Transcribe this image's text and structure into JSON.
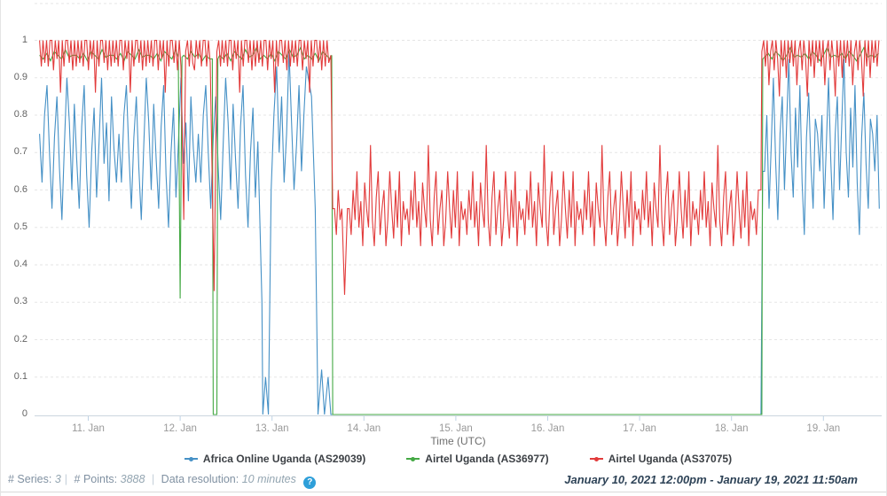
{
  "page": {
    "footer": {
      "series_label": "# Series:",
      "series_value": "3",
      "points_label": "# Points:",
      "points_value": "3888",
      "resolution_label": "Data resolution:",
      "resolution_value": "10 minutes",
      "separator": "|",
      "help_icon_glyph": "?",
      "date_range": "January 10, 2021 12:00pm - January 19, 2021 11:50am"
    },
    "colors": {
      "help_icon_bg": "#2e9fd9",
      "footer_label": "#8091a2",
      "date_text": "#2e4357",
      "gridline": "#e5e5e5",
      "axis_line": "#ccd6de",
      "tick_mark": "#bfd3e5"
    }
  },
  "chart_data": {
    "type": "line",
    "title": "",
    "xlabel": "Time (UTC)",
    "ylabel": "",
    "ylim": [
      0,
      1
    ],
    "x_range_label": [
      "January 10, 2021 12:00pm",
      "January 19, 2021 11:50am"
    ],
    "grid": "horizontal-dashed",
    "legend_position": "bottom",
    "y_ticks": [
      {
        "v": 1.0,
        "label": "1"
      },
      {
        "v": 0.9,
        "label": "0.9"
      },
      {
        "v": 0.8,
        "label": "0.8"
      },
      {
        "v": 0.7,
        "label": "0.7"
      },
      {
        "v": 0.6,
        "label": "0.6"
      },
      {
        "v": 0.5,
        "label": "0.5"
      },
      {
        "v": 0.4,
        "label": "0.4"
      },
      {
        "v": 0.3,
        "label": "0.3"
      },
      {
        "v": 0.2,
        "label": "0.2"
      },
      {
        "v": 0.1,
        "label": "0.1"
      },
      {
        "v": 0.0,
        "label": "0"
      }
    ],
    "x_ticks": [
      {
        "day": 11,
        "label": "11. Jan"
      },
      {
        "day": 12,
        "label": "12. Jan"
      },
      {
        "day": 13,
        "label": "13. Jan"
      },
      {
        "day": 14,
        "label": "14. Jan"
      },
      {
        "day": 15,
        "label": "15. Jan"
      },
      {
        "day": 16,
        "label": "16. Jan"
      },
      {
        "day": 17,
        "label": "17. Jan"
      },
      {
        "day": 18,
        "label": "18. Jan"
      },
      {
        "day": 19,
        "label": "19. Jan"
      }
    ],
    "series": [
      {
        "name": "Africa Online Uganda (AS29039)",
        "color": "#4691c6",
        "segments": [
          {
            "mode": "noise",
            "x0": 10.47,
            "x1": 12.87,
            "step": 0.027,
            "values": [
              0.75,
              0.62,
              0.8,
              0.88,
              0.7,
              0.55,
              0.74,
              0.85,
              0.66,
              0.52,
              0.72,
              0.9,
              0.78,
              0.6,
              0.83,
              0.68,
              0.55,
              0.77,
              0.88,
              0.64,
              0.5,
              0.7,
              0.82,
              0.58,
              0.73,
              0.9,
              0.67,
              0.78,
              0.57,
              0.85,
              0.71,
              0.62
            ]
          },
          {
            "mode": "points",
            "pts": [
              [
                12.89,
                0.3
              ],
              [
                12.9,
                0
              ],
              [
                12.93,
                0.1
              ],
              [
                12.96,
                0
              ],
              [
                12.99,
                0.6
              ],
              [
                13.02,
                0.8
              ]
            ]
          },
          {
            "mode": "noise",
            "x0": 13.05,
            "x1": 13.4,
            "step": 0.027,
            "values": [
              0.93,
              0.7,
              0.85,
              0.62,
              0.75,
              0.97,
              0.78,
              0.6,
              0.72,
              0.88,
              0.65,
              0.8
            ]
          },
          {
            "mode": "points",
            "pts": [
              [
                13.43,
                0.85
              ],
              [
                13.47,
                0.55
              ],
              [
                13.5,
                0
              ],
              [
                13.54,
                0.12
              ],
              [
                13.57,
                0
              ],
              [
                13.61,
                0.1
              ],
              [
                13.64,
                0
              ],
              [
                18.32,
                0
              ],
              [
                18.34,
                0.65
              ]
            ]
          },
          {
            "mode": "noise",
            "x0": 18.36,
            "x1": 19.62,
            "step": 0.024,
            "values": [
              0.65,
              0.8,
              0.55,
              0.72,
              0.9,
              0.68,
              0.52,
              0.75,
              0.85,
              0.6,
              0.78,
              0.95,
              0.7,
              0.58,
              0.82,
              0.66,
              0.88,
              0.62,
              0.48,
              0.74,
              0.86,
              0.67,
              0.55,
              0.79,
              0.75
            ]
          }
        ]
      },
      {
        "name": "Airtel Uganda (AS36977)",
        "color": "#44a944",
        "segments": [
          {
            "mode": "noise",
            "x0": 10.47,
            "x1": 11.96,
            "step": 0.04,
            "values": [
              0.96,
              0.95,
              0.965,
              0.945,
              0.97,
              0.96,
              0.95,
              0.975,
              0.955,
              0.96
            ]
          },
          {
            "mode": "points",
            "pts": [
              [
                11.98,
                0.955
              ],
              [
                12.0,
                0.31
              ],
              [
                12.02,
                0.955
              ]
            ]
          },
          {
            "mode": "noise",
            "x0": 12.04,
            "x1": 12.33,
            "step": 0.04,
            "values": [
              0.96,
              0.95,
              0.97,
              0.955,
              0.965,
              0.945
            ]
          },
          {
            "mode": "points",
            "pts": [
              [
                12.35,
                0.95
              ],
              [
                12.36,
                0
              ],
              [
                12.4,
                0
              ],
              [
                12.41,
                0.95
              ]
            ]
          },
          {
            "mode": "noise",
            "x0": 12.43,
            "x1": 13.63,
            "step": 0.04,
            "values": [
              0.96,
              0.95,
              0.965,
              0.945,
              0.97,
              0.96,
              0.95,
              0.975,
              0.955,
              0.96,
              0.98,
              0.95
            ]
          },
          {
            "mode": "points",
            "pts": [
              [
                13.65,
                0.96
              ],
              [
                13.66,
                0
              ],
              [
                18.33,
                0
              ],
              [
                18.34,
                0.95
              ]
            ]
          },
          {
            "mode": "noise",
            "x0": 18.36,
            "x1": 19.62,
            "step": 0.04,
            "values": [
              0.955,
              0.965,
              0.95,
              0.97,
              0.96,
              0.945,
              0.96,
              0.98,
              0.955,
              0.96
            ]
          }
        ]
      },
      {
        "name": "Airtel Uganda (AS37075)",
        "color": "#e23b3b",
        "segments": [
          {
            "mode": "noise",
            "x0": 10.47,
            "x1": 12.02,
            "step": 0.019,
            "values": [
              1,
              0.93,
              1,
              0.94,
              1,
              0.93,
              1,
              1,
              0.92,
              1,
              0.95,
              1,
              0.86,
              1,
              0.93,
              1,
              1,
              0.94,
              1,
              0.92
            ]
          },
          {
            "mode": "points",
            "pts": [
              [
                12.04,
                0.52
              ],
              [
                12.06,
                0.97
              ]
            ]
          },
          {
            "mode": "noise",
            "x0": 12.08,
            "x1": 12.34,
            "step": 0.019,
            "values": [
              1,
              0.93,
              1,
              0.94,
              0.92,
              1,
              0.95,
              1,
              0.93,
              1
            ]
          },
          {
            "mode": "points",
            "pts": [
              [
                12.37,
                0.33
              ],
              [
                12.4,
                0.97
              ]
            ]
          },
          {
            "mode": "noise",
            "x0": 12.42,
            "x1": 13.62,
            "step": 0.019,
            "values": [
              1,
              0.93,
              1,
              0.94,
              1,
              0.93,
              1,
              1,
              0.92,
              1,
              0.95,
              1,
              0.86,
              1,
              0.93,
              1,
              1,
              0.94,
              1,
              0.92
            ]
          },
          {
            "mode": "points",
            "pts": [
              [
                13.64,
                0.96
              ],
              [
                13.66,
                0.55
              ]
            ]
          },
          {
            "mode": "noise",
            "x0": 13.68,
            "x1": 13.76,
            "step": 0.02,
            "values": [
              0.55,
              0.48,
              0.6,
              0.52
            ]
          },
          {
            "mode": "points",
            "pts": [
              [
                13.79,
                0.32
              ],
              [
                13.82,
                0.55
              ]
            ]
          },
          {
            "mode": "noise",
            "x0": 13.84,
            "x1": 18.3,
            "step": 0.021,
            "values": [
              0.55,
              0.48,
              0.6,
              0.52,
              0.65,
              0.5,
              0.57,
              0.45,
              0.62,
              0.55,
              0.5,
              0.72,
              0.52,
              0.45,
              0.58,
              0.65,
              0.48,
              0.55,
              0.6,
              0.45,
              0.52,
              0.65,
              0.55,
              0.47,
              0.6,
              0.5,
              0.65,
              0.45,
              0.57,
              0.52
            ]
          },
          {
            "mode": "points",
            "pts": [
              [
                18.32,
                0.6
              ],
              [
                18.33,
                0.97
              ]
            ]
          },
          {
            "mode": "noise",
            "x0": 18.35,
            "x1": 19.62,
            "step": 0.019,
            "values": [
              1,
              0.93,
              1,
              0.88,
              0.97,
              1,
              0.92,
              1,
              0.95,
              0.85,
              1,
              0.93,
              1,
              0.9,
              1,
              0.94
            ]
          }
        ]
      }
    ]
  }
}
